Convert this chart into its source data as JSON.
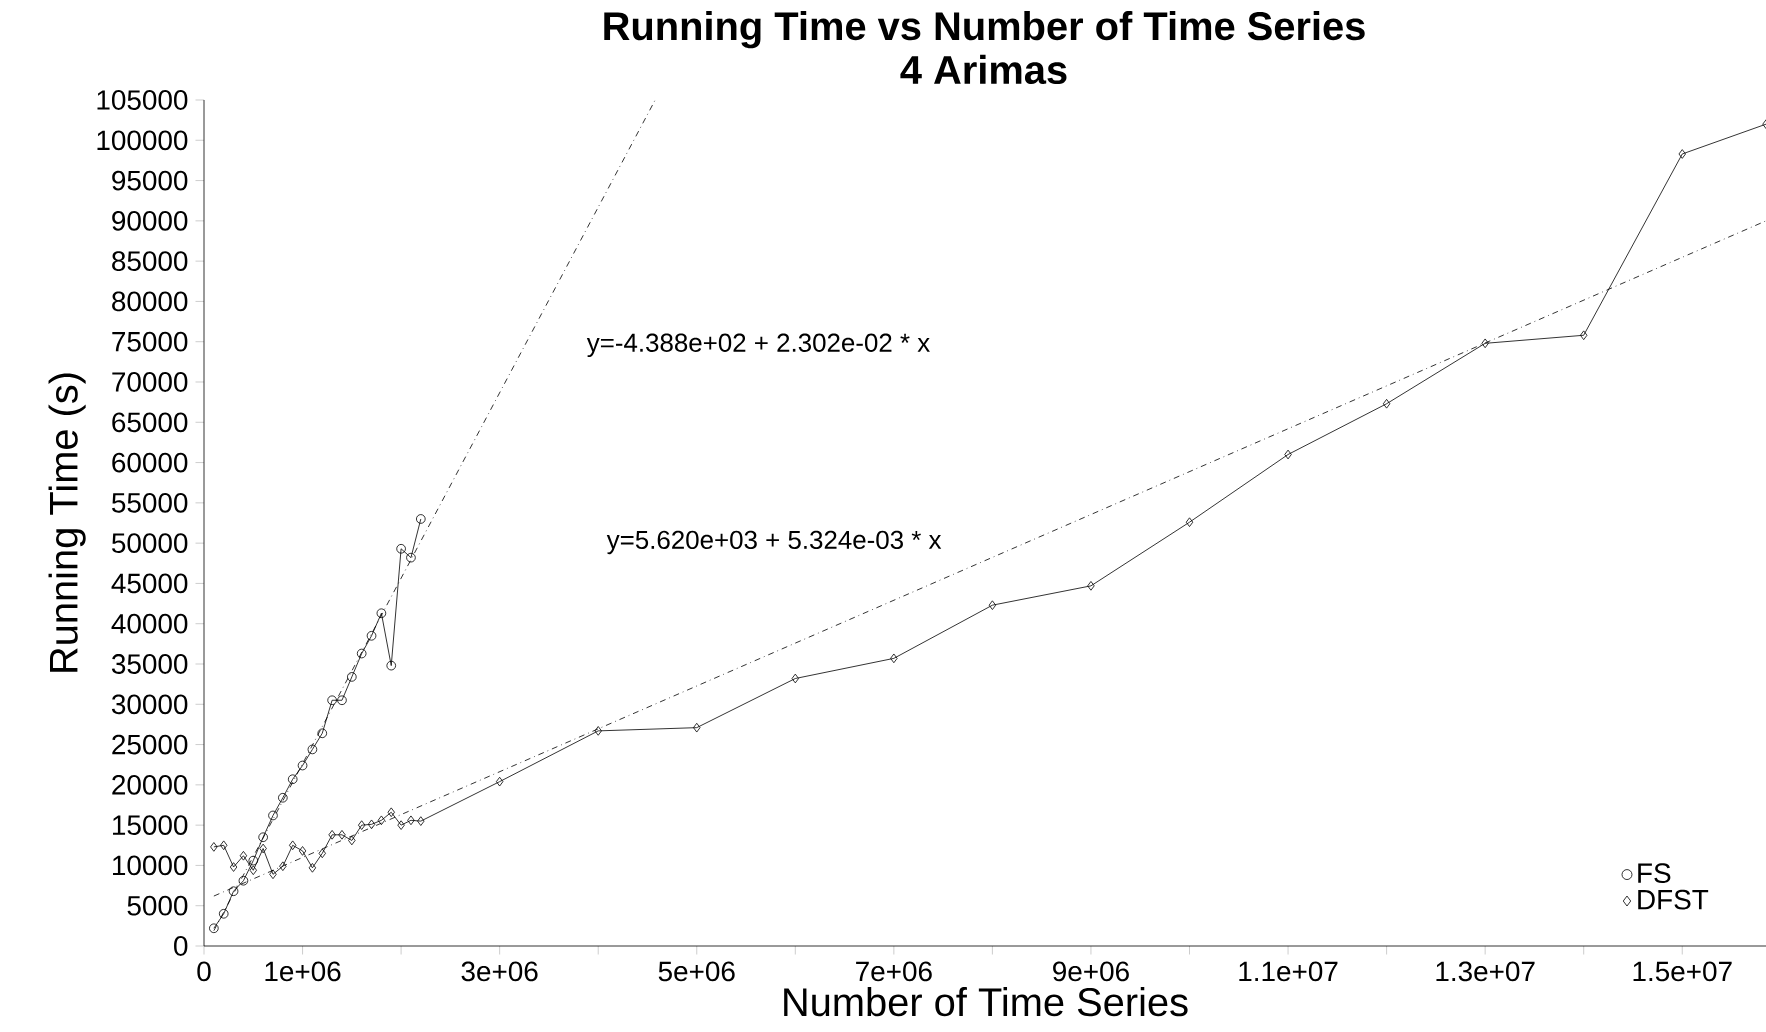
{
  "chart_data": {
    "type": "line",
    "title": "Running Time vs Number of Time Series",
    "subtitle": "4 Arimas",
    "xlabel": "Number of Time Series",
    "ylabel": "Running Time (s)",
    "xlim": [
      0,
      15850000
    ],
    "ylim": [
      0,
      105000
    ],
    "xticks": [
      0,
      {
        "value": 1000000,
        "label": "1e+06"
      },
      {
        "value": 2000000,
        "label": null
      },
      {
        "value": 3000000,
        "label": "3e+06"
      },
      {
        "value": 4000000,
        "label": null
      },
      {
        "value": 5000000,
        "label": "5e+06"
      },
      {
        "value": 6000000,
        "label": null
      },
      {
        "value": 7000000,
        "label": "7e+06"
      },
      {
        "value": 8000000,
        "label": null
      },
      {
        "value": 9000000,
        "label": "9e+06"
      },
      {
        "value": 10000000,
        "label": null
      },
      {
        "value": 11000000,
        "label": "1.1e+07"
      },
      {
        "value": 12000000,
        "label": null
      },
      {
        "value": 13000000,
        "label": "1.3e+07"
      },
      {
        "value": 14000000,
        "label": null
      },
      {
        "value": 15000000,
        "label": "1.5e+07"
      }
    ],
    "yticks": [
      0,
      5000,
      10000,
      15000,
      20000,
      25000,
      30000,
      35000,
      40000,
      45000,
      50000,
      55000,
      60000,
      65000,
      70000,
      75000,
      80000,
      85000,
      90000,
      95000,
      100000,
      105000
    ],
    "grid": false,
    "legend": "bottom right",
    "series": [
      {
        "name": "FS",
        "color": "#000000",
        "marker": "circle",
        "line_style": "solid",
        "x": [
          100000,
          200000,
          300000,
          400000,
          500000,
          600000,
          700000,
          800000,
          900000,
          1000000,
          1100000,
          1200000,
          1300000,
          1400000,
          1500000,
          1600000,
          1700000,
          1800000,
          1900000,
          2000000,
          2100000,
          2200000
        ],
        "values": [
          2200,
          4000,
          6800,
          8100,
          10600,
          13500,
          16200,
          18400,
          20700,
          22400,
          24400,
          26400,
          30500,
          30500,
          33400,
          36300,
          38500,
          41300,
          34800,
          49300,
          48200,
          53000
        ]
      },
      {
        "name": "DFST",
        "color": "#000000",
        "marker": "diamond",
        "line_style": "solid",
        "x": [
          100000,
          200000,
          300000,
          400000,
          500000,
          600000,
          700000,
          800000,
          900000,
          1000000,
          1100000,
          1200000,
          1300000,
          1400000,
          1500000,
          1600000,
          1700000,
          1800000,
          1900000,
          2000000,
          2100000,
          2200000,
          3000000,
          4000000,
          5000000,
          6000000,
          7000000,
          8000000,
          9000000,
          10000000,
          11000000,
          12000000,
          13000000,
          14000000,
          15000000,
          15850000
        ],
        "values": [
          12300,
          12500,
          9800,
          11200,
          9400,
          12100,
          8900,
          9900,
          12500,
          11800,
          9700,
          11500,
          13800,
          13800,
          13100,
          15000,
          15100,
          15600,
          16600,
          15000,
          15600,
          15500,
          20400,
          26700,
          27100,
          33200,
          35700,
          42300,
          44700,
          52600,
          61000,
          67300,
          74800,
          75800,
          98300,
          102000
        ]
      },
      {
        "type": "line",
        "color": "#000000",
        "marker": "none",
        "line_style": "dashed",
        "x": [
          100000,
          4578000
        ],
        "values": [
          1900,
          105000
        ]
      },
      {
        "type": "line",
        "color": "#000000",
        "marker": "none",
        "line_style": "dashed",
        "x": [
          100000,
          15850000
        ],
        "values": [
          6200,
          90000
        ]
      }
    ],
    "annotations": [
      "y=-4.388e+02 + 2.302e-02 * x",
      "y=5.620e+03 + 5.324e-03 * x"
    ]
  }
}
